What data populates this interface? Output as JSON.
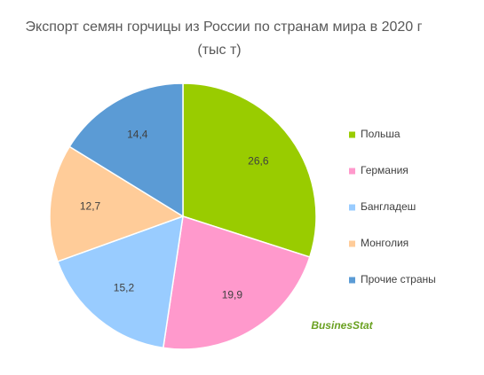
{
  "chart_data": {
    "type": "pie",
    "title": "Экспорт семян горчицы из России по странам мира в 2020 г",
    "subtitle": "(тыс т)",
    "categories": [
      "Польша",
      "Германия",
      "Бангладеш",
      "Монголия",
      "Прочие страны"
    ],
    "values": [
      26.6,
      19.9,
      15.2,
      12.7,
      14.4
    ],
    "value_labels": [
      "26,6",
      "19,9",
      "15,2",
      "12,7",
      "14,4"
    ],
    "colors": [
      "#99cc00",
      "#ff99cc",
      "#99ccff",
      "#ffcc99",
      "#5b9bd5"
    ],
    "legend": "right",
    "watermark": "BusinesStat"
  }
}
